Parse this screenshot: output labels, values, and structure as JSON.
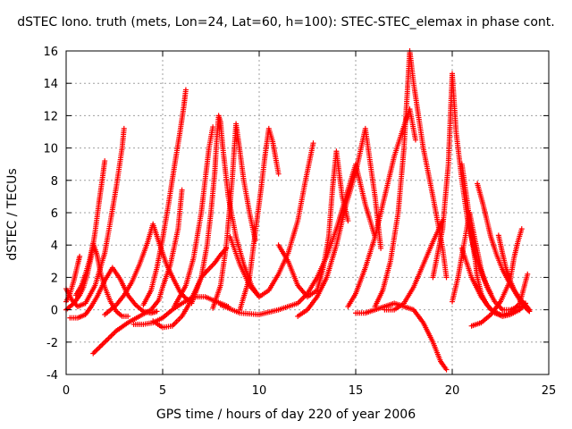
{
  "chart_data": {
    "type": "scatter",
    "title": "dSTEC Iono. truth (mets, Lon=24, Lat=60, h=100): STEC-STEC_elemax in phase cont.",
    "xlabel": "GPS time / hours of day 220 of year 2006",
    "ylabel": "dSTEC  / TECUs",
    "xlim": [
      0,
      25
    ],
    "ylim": [
      -4,
      16
    ],
    "xticks": [
      0,
      5,
      10,
      15,
      20,
      25
    ],
    "yticks": [
      -4,
      -2,
      0,
      2,
      4,
      6,
      8,
      10,
      12,
      14,
      16
    ],
    "grid": true,
    "marker": "+",
    "color": "#ff0000",
    "series": [
      {
        "x": [
          0.0,
          0.3,
          0.6,
          1.0,
          1.5,
          2.0,
          2.3,
          2.6,
          2.9,
          3.0
        ],
        "y": [
          1.3,
          0.6,
          0.2,
          0.4,
          1.5,
          3.5,
          5.5,
          7.6,
          10.0,
          11.2
        ]
      },
      {
        "x": [
          0.0,
          0.4,
          0.7,
          0.9,
          1.1,
          1.3,
          1.5,
          1.7,
          1.9,
          2.0
        ],
        "y": [
          0.0,
          0.4,
          0.9,
          1.4,
          2.2,
          3.3,
          4.8,
          6.6,
          8.3,
          9.2
        ]
      },
      {
        "x": [
          0.0,
          0.2,
          0.4,
          0.6,
          0.7
        ],
        "y": [
          0.5,
          1.0,
          1.8,
          2.8,
          3.3
        ]
      },
      {
        "x": [
          0.2,
          0.6,
          1.0,
          1.3,
          1.6,
          2.0,
          2.4,
          2.8,
          3.2,
          3.6,
          4.0,
          4.4,
          4.7
        ],
        "y": [
          -0.5,
          -0.5,
          -0.3,
          0.2,
          0.8,
          1.8,
          2.6,
          1.9,
          0.9,
          0.3,
          -0.1,
          -0.2,
          -0.1
        ]
      },
      {
        "x": [
          0.5,
          0.8,
          1.0,
          1.2,
          1.4,
          1.6,
          1.8,
          2.0,
          2.3,
          2.6,
          2.9,
          3.2
        ],
        "y": [
          0.9,
          1.5,
          2.2,
          3.0,
          4.1,
          3.4,
          2.2,
          1.4,
          0.5,
          -0.1,
          -0.4,
          -0.4
        ]
      },
      {
        "x": [
          1.4,
          2.0,
          2.6,
          3.2,
          3.8,
          4.4,
          4.8,
          5.0,
          5.4,
          5.8,
          6.0
        ],
        "y": [
          -2.7,
          -2.0,
          -1.3,
          -0.8,
          -0.4,
          0.0,
          0.6,
          1.4,
          2.8,
          5.0,
          7.4
        ]
      },
      {
        "x": [
          2.0,
          2.6,
          3.0,
          3.4,
          3.8,
          4.2,
          4.5,
          4.8,
          5.2,
          5.6,
          5.9,
          6.2,
          6.5
        ],
        "y": [
          -0.3,
          0.3,
          0.9,
          1.7,
          2.8,
          4.1,
          5.3,
          4.2,
          2.8,
          1.8,
          1.1,
          0.7,
          0.5
        ]
      },
      {
        "x": [
          3.5,
          4.0,
          4.5,
          5.0,
          5.5,
          6.0,
          6.6,
          7.2,
          7.8,
          8.4
        ],
        "y": [
          -0.9,
          -0.9,
          -0.8,
          -0.5,
          0.0,
          0.4,
          0.8,
          0.8,
          0.5,
          0.2
        ]
      },
      {
        "x": [
          4.0,
          4.4,
          4.7,
          5.0,
          5.3,
          5.6,
          5.9,
          6.1,
          6.2
        ],
        "y": [
          0.3,
          1.2,
          2.6,
          4.4,
          6.5,
          8.8,
          11.0,
          12.6,
          13.6
        ]
      },
      {
        "x": [
          4.5,
          5.0,
          5.5,
          6.0,
          6.3,
          6.7,
          7.0,
          7.3,
          7.7,
          8.0,
          8.3
        ],
        "y": [
          -0.7,
          -1.1,
          -1.0,
          -0.4,
          0.2,
          1.2,
          2.0,
          2.4,
          2.9,
          3.4,
          3.8
        ]
      },
      {
        "x": [
          6.5,
          7.0,
          7.3,
          7.5,
          7.7,
          7.8,
          7.9,
          8.0,
          8.1,
          8.4,
          8.8,
          9.2,
          9.6,
          10.0
        ],
        "y": [
          0.4,
          2.0,
          4.0,
          6.0,
          8.5,
          10.5,
          12.0,
          11.6,
          10.2,
          7.0,
          4.5,
          2.8,
          1.5,
          0.8
        ]
      },
      {
        "x": [
          5.6,
          6.2,
          6.6,
          7.0,
          7.2,
          7.4,
          7.6
        ],
        "y": [
          0.2,
          1.5,
          3.2,
          6.0,
          8.0,
          10.0,
          11.3
        ]
      },
      {
        "x": [
          7.6,
          8.0,
          8.3,
          8.6,
          8.8,
          9.0,
          9.2,
          9.5,
          9.8
        ],
        "y": [
          0.1,
          1.5,
          4.0,
          8.0,
          11.5,
          9.8,
          8.0,
          6.0,
          4.3
        ]
      },
      {
        "x": [
          8.5,
          9.0,
          9.5,
          10.0,
          10.5,
          11.0,
          11.5,
          12.0,
          12.4,
          12.8
        ],
        "y": [
          4.5,
          2.8,
          1.5,
          0.8,
          1.2,
          2.2,
          3.5,
          5.5,
          8.0,
          10.3
        ]
      },
      {
        "x": [
          9.0,
          9.5,
          9.8,
          10.1,
          10.3,
          10.5,
          10.7,
          11.0
        ],
        "y": [
          0.0,
          2.0,
          4.8,
          7.5,
          9.5,
          11.2,
          10.4,
          8.4
        ]
      },
      {
        "x": [
          8.0,
          9.0,
          10.0,
          11.0,
          12.0,
          12.5,
          13.0,
          13.5,
          14.0,
          14.5,
          15.0,
          15.5,
          16.0
        ],
        "y": [
          0.3,
          -0.2,
          -0.3,
          0.0,
          0.4,
          1.0,
          2.0,
          3.3,
          5.0,
          7.0,
          9.0,
          6.5,
          4.5
        ]
      },
      {
        "x": [
          11.0,
          11.5,
          12.0,
          12.5,
          13.0,
          13.3,
          13.6,
          13.8,
          14.0,
          14.3,
          14.6
        ],
        "y": [
          4.0,
          3.0,
          1.5,
          0.8,
          1.2,
          2.5,
          4.5,
          7.5,
          9.8,
          7.0,
          5.5
        ]
      },
      {
        "x": [
          12.0,
          12.5,
          13.0,
          13.5,
          14.0,
          14.5,
          15.0,
          15.5,
          16.0,
          16.3
        ],
        "y": [
          -0.4,
          0.0,
          0.8,
          2.0,
          4.0,
          6.5,
          8.5,
          11.2,
          7.0,
          3.8
        ]
      },
      {
        "x": [
          14.6,
          15.0,
          15.5,
          16.0,
          16.5,
          17.0,
          17.4,
          17.8,
          18.1
        ],
        "y": [
          0.2,
          1.0,
          2.6,
          4.5,
          7.0,
          9.5,
          11.0,
          12.4,
          10.5
        ]
      },
      {
        "x": [
          16.0,
          16.4,
          16.8,
          17.2,
          17.5,
          17.8,
          18.0,
          18.5,
          19.0,
          19.5,
          19.7
        ],
        "y": [
          0.2,
          1.2,
          3.0,
          6.0,
          10.0,
          16.0,
          14.0,
          10.0,
          7.0,
          3.8,
          2.0
        ]
      },
      {
        "x": [
          15.0,
          15.5,
          16.0,
          16.5,
          17.0,
          17.5,
          18.0,
          18.5,
          19.0,
          19.4,
          19.7
        ],
        "y": [
          -0.2,
          -0.2,
          0.0,
          0.2,
          0.4,
          0.2,
          0.0,
          -0.8,
          -2.0,
          -3.2,
          -3.7
        ]
      },
      {
        "x": [
          16.5,
          17.0,
          17.5,
          18.0,
          18.5,
          19.0,
          19.5
        ],
        "y": [
          0.0,
          0.0,
          0.4,
          1.4,
          2.8,
          4.2,
          5.5
        ]
      },
      {
        "x": [
          19.0,
          19.5,
          19.8,
          20.0,
          20.2,
          20.5,
          20.8,
          21.2,
          21.6,
          22.0
        ],
        "y": [
          2.0,
          5.0,
          9.0,
          14.6,
          11.0,
          8.0,
          5.5,
          3.4,
          2.0,
          1.0
        ]
      },
      {
        "x": [
          20.0,
          20.3,
          20.6,
          20.9,
          21.2,
          21.5,
          21.8,
          22.2,
          22.6,
          23.0,
          23.5
        ],
        "y": [
          0.5,
          2.0,
          4.0,
          6.0,
          4.2,
          2.5,
          1.4,
          0.5,
          0.0,
          0.0,
          0.2
        ]
      },
      {
        "x": [
          20.5,
          21.0,
          21.5,
          22.0,
          22.5,
          23.0,
          23.5,
          23.9
        ],
        "y": [
          3.8,
          2.0,
          0.8,
          0.0,
          -0.3,
          -0.2,
          0.4,
          2.2
        ]
      },
      {
        "x": [
          20.5,
          20.8,
          21.0,
          21.2,
          21.3,
          21.5,
          21.8,
          22.2,
          22.6,
          23.0,
          23.5,
          23.8
        ],
        "y": [
          9.0,
          6.5,
          4.5,
          3.0,
          2.0,
          1.0,
          0.3,
          -0.2,
          -0.4,
          -0.3,
          0.0,
          0.4
        ]
      },
      {
        "x": [
          21.3,
          21.6,
          21.8,
          22.0,
          22.3,
          22.6,
          22.9,
          23.2,
          23.5,
          23.8,
          24.0
        ],
        "y": [
          7.8,
          6.5,
          5.5,
          4.5,
          3.4,
          2.5,
          1.8,
          1.2,
          0.7,
          0.3,
          0.0
        ]
      },
      {
        "x": [
          21.0,
          21.5,
          22.0,
          22.5,
          23.0,
          23.2,
          23.4,
          23.6
        ],
        "y": [
          -1.0,
          -0.8,
          -0.3,
          0.5,
          1.8,
          3.2,
          4.2,
          5.0
        ]
      },
      {
        "x": [
          22.4,
          22.6,
          22.8,
          23.0,
          23.3,
          23.6,
          23.9,
          24.0
        ],
        "y": [
          4.6,
          3.5,
          2.5,
          1.8,
          1.0,
          0.4,
          0.0,
          -0.1
        ]
      }
    ]
  }
}
